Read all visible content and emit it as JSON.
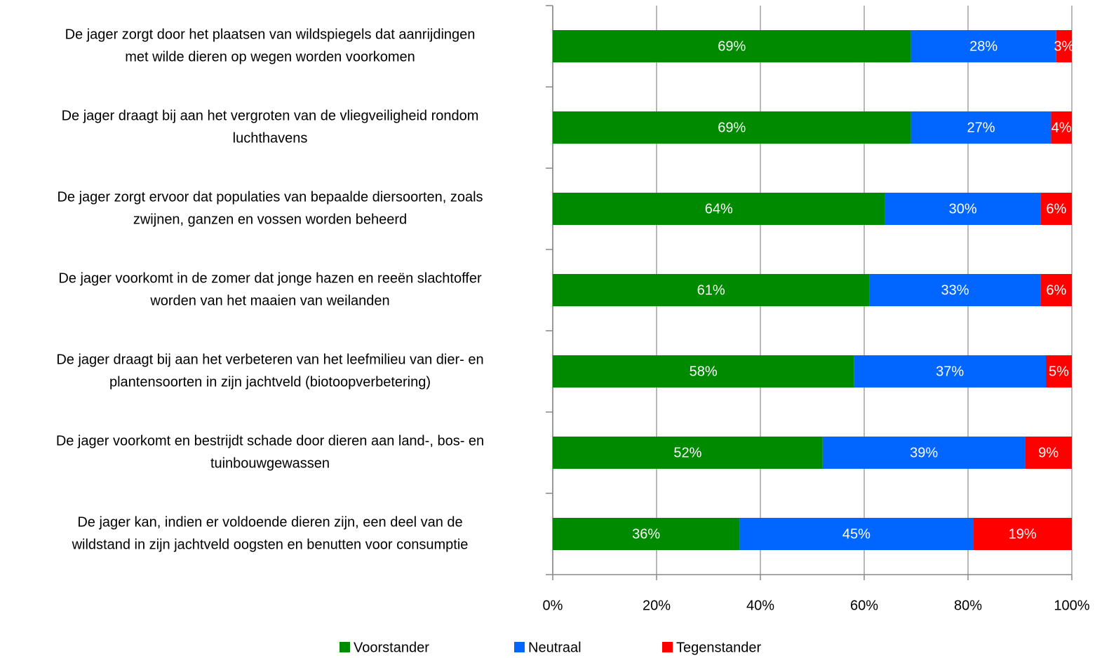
{
  "chart_data": {
    "type": "stacked_barh",
    "categories": [
      [
        "De jager zorgt door het plaatsen van wildspiegels dat aanrijdingen",
        "met wilde dieren op wegen worden voorkomen"
      ],
      [
        "De jager draagt bij aan het vergroten van de vliegveiligheid rondom",
        "luchthavens"
      ],
      [
        "De jager zorgt ervoor dat populaties van bepaalde diersoorten, zoals",
        "zwijnen, ganzen en vossen worden beheerd"
      ],
      [
        "De jager voorkomt in de zomer dat jonge hazen en reeën  slachtoffer",
        "worden van het maaien van weilanden"
      ],
      [
        "De jager draagt bij aan het verbeteren van het leefmilieu van dier- en",
        "plantensoorten in zijn jachtveld (biotoopverbetering)"
      ],
      [
        "De jager voorkomt en bestrijdt schade door dieren aan land-, bos- en",
        "tuinbouwgewassen"
      ],
      [
        "De jager kan, indien er voldoende dieren zijn, een deel van de",
        "wildstand in zijn jachtveld oogsten en benutten voor consumptie"
      ]
    ],
    "series": [
      {
        "name": "Voorstander",
        "color": "#008a00",
        "values": [
          69,
          69,
          64,
          61,
          58,
          52,
          36
        ],
        "value_labels": [
          "69%",
          "69%",
          "64%",
          "61%",
          "58%",
          "52%",
          "36%"
        ]
      },
      {
        "name": "Neutraal",
        "color": "#0066ff",
        "values": [
          28,
          27,
          30,
          33,
          37,
          39,
          45
        ],
        "value_labels": [
          "28%",
          "27%",
          "30%",
          "33%",
          "37%",
          "39%",
          "45%"
        ]
      },
      {
        "name": "Tegenstander",
        "color": "#ff0000",
        "values": [
          3,
          4,
          6,
          6,
          5,
          9,
          19
        ],
        "value_labels": [
          "3%",
          "4%",
          "6%",
          "6%",
          "5%",
          "9%",
          "19%"
        ]
      }
    ],
    "xlim": [
      0,
      100
    ],
    "xticks": [
      {
        "value": 0,
        "label": "0%"
      },
      {
        "value": 20,
        "label": "20%"
      },
      {
        "value": 40,
        "label": "40%"
      },
      {
        "value": 60,
        "label": "60%"
      },
      {
        "value": 80,
        "label": "80%"
      },
      {
        "value": 100,
        "label": "100%"
      }
    ],
    "grid": true,
    "legend": "bottom"
  }
}
